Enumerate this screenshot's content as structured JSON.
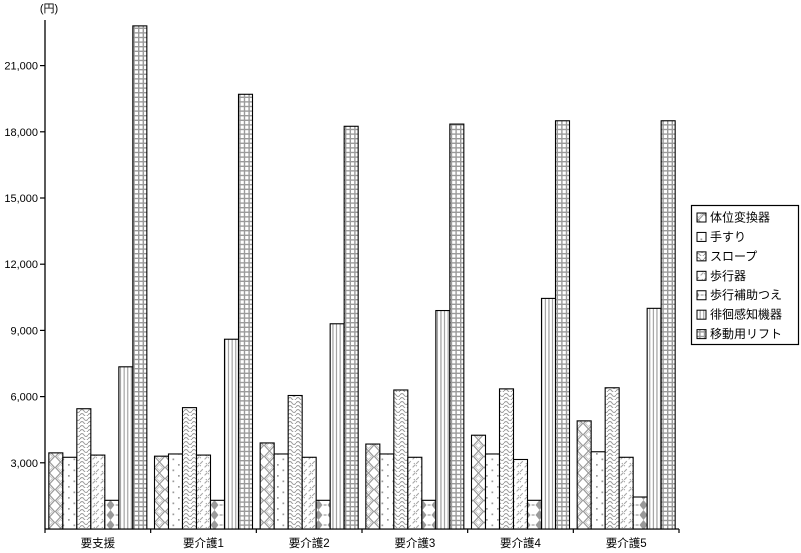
{
  "chart_data": {
    "type": "bar",
    "title": "",
    "ylabel": "(円)",
    "xlabel": "",
    "grid": false,
    "legend_position": "right",
    "categories": [
      "要支援",
      "要介護1",
      "要介護2",
      "要介護3",
      "要介護4",
      "要介護5"
    ],
    "series": [
      {
        "name": "体位変換器",
        "pattern": "chainlink",
        "values": [
          3450,
          3300,
          3900,
          3850,
          4250,
          4900
        ]
      },
      {
        "name": "手すり",
        "pattern": "dots",
        "values": [
          3250,
          3400,
          3400,
          3400,
          3400,
          3500
        ]
      },
      {
        "name": "スロープ",
        "pattern": "scales",
        "values": [
          5450,
          5500,
          6050,
          6300,
          6350,
          6400
        ]
      },
      {
        "name": "歩行器",
        "pattern": "diagonal",
        "values": [
          3350,
          3350,
          3250,
          3250,
          3150,
          3250
        ]
      },
      {
        "name": "歩行補助つえ",
        "pattern": "diamonds",
        "values": [
          1300,
          1300,
          1300,
          1300,
          1300,
          1450
        ]
      },
      {
        "name": "徘徊感知機器",
        "pattern": "vlines",
        "values": [
          7350,
          8600,
          9300,
          9900,
          10450,
          10000
        ]
      },
      {
        "name": "移動用リフト",
        "pattern": "grid",
        "values": [
          22800,
          19700,
          18250,
          18350,
          18500,
          18500
        ]
      }
    ],
    "yticks": [
      3000,
      6000,
      9000,
      12000,
      15000,
      18000,
      21000
    ],
    "ylim": [
      0,
      23000
    ],
    "colors": {
      "axis": "#000000",
      "bar_outline": "#000000",
      "bar_fill": "#ffffff",
      "pattern_gray": "#999999",
      "background": "#ffffff",
      "legend_border": "#000000"
    }
  }
}
